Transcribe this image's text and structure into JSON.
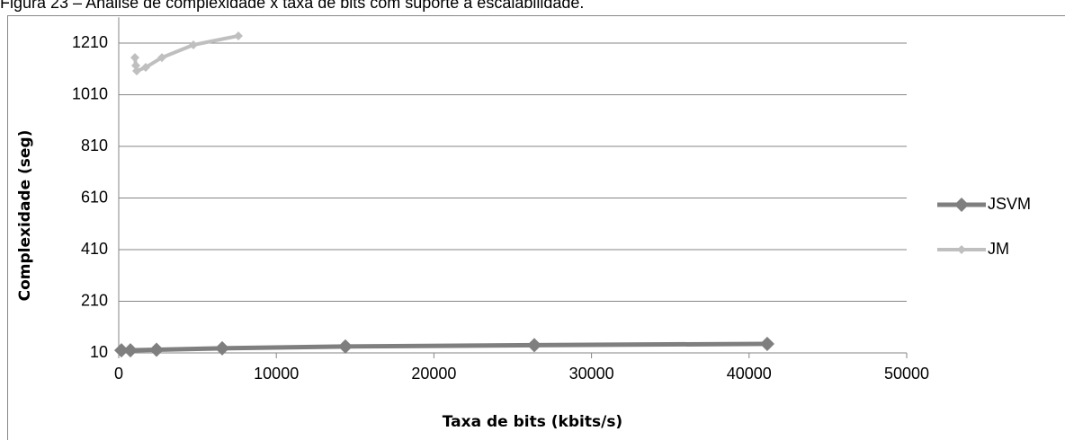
{
  "chart_data": {
    "type": "line",
    "title": "Figura 23 – Análise de complexidade x taxa de bits com suporte à escalabilidade.",
    "xlabel": "Taxa de bits (kbits/s)",
    "ylabel": "Complexidade (seg)",
    "xlim": [
      0,
      50000
    ],
    "xticks": [
      0,
      10000,
      20000,
      30000,
      40000,
      50000
    ],
    "ylim": [
      10,
      1310
    ],
    "yticks": [
      10,
      210,
      410,
      610,
      810,
      1010,
      1210
    ],
    "grid": true,
    "legend": "right",
    "series": [
      {
        "name": "JSVM",
        "color": "#7f7f7f",
        "x": [
          171,
          742,
          2397,
          6564,
          14383,
          26370,
          41150
        ],
        "values": [
          20,
          20,
          22,
          28,
          35,
          40,
          45
        ]
      },
      {
        "name": "JM",
        "color": "#bfbfbf",
        "x": [
          1027,
          1085,
          1141,
          1712,
          2740,
          4737,
          7591
        ],
        "values": [
          1154,
          1123,
          1102,
          1116,
          1154,
          1203,
          1238
        ]
      }
    ]
  }
}
